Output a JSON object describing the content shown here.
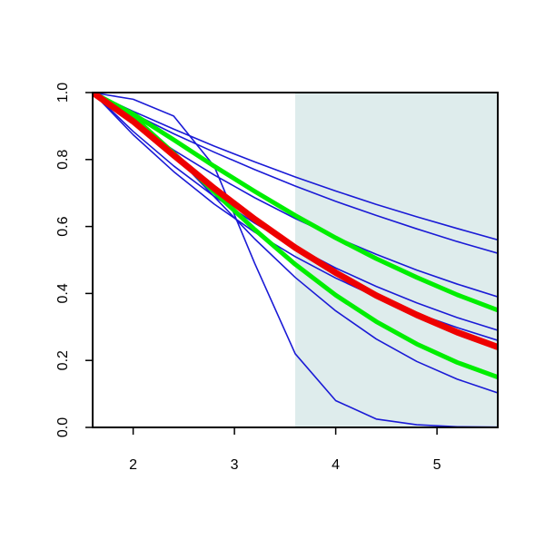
{
  "chart_data": {
    "type": "line",
    "x": [
      1.6,
      2.0,
      2.4,
      2.8,
      3.2,
      3.6,
      4.0,
      4.4,
      4.8,
      5.2,
      5.6
    ],
    "xlim": [
      1.6,
      5.6
    ],
    "ylim": [
      0,
      1
    ],
    "xticks": [
      2,
      3,
      4,
      5
    ],
    "yticks": [
      {
        "value": 0,
        "label": "0.0"
      },
      0.2,
      0.4,
      0.6,
      0.8,
      {
        "value": 1,
        "label": "1.0"
      }
    ],
    "highlight_xlim": [
      3.6,
      5.6
    ],
    "highlight_color": "#deecec",
    "series": [
      {
        "color": "#1a1ad6",
        "width": 1.6,
        "values": [
          1,
          0.944,
          0.891,
          0.84,
          0.793,
          0.748,
          0.706,
          0.666,
          0.629,
          0.594,
          0.56
        ]
      },
      {
        "color": "#1a1ad6",
        "width": 1.6,
        "values": [
          1,
          0.937,
          0.877,
          0.822,
          0.77,
          0.721,
          0.675,
          0.633,
          0.593,
          0.555,
          0.52
        ]
      },
      {
        "color": "#1a1ad6",
        "width": 1.6,
        "values": [
          1,
          0.91,
          0.828,
          0.754,
          0.686,
          0.624,
          0.568,
          0.517,
          0.47,
          0.428,
          0.39
        ]
      },
      {
        "color": "#1a1ad6",
        "width": 1.6,
        "values": [
          1,
          0.884,
          0.781,
          0.69,
          0.61,
          0.539,
          0.476,
          0.421,
          0.372,
          0.328,
          0.29
        ]
      },
      {
        "color": "#1a1ad6",
        "width": 1.6,
        "values": [
          1,
          0.874,
          0.764,
          0.667,
          0.583,
          0.51,
          0.446,
          0.39,
          0.34,
          0.298,
          0.26
        ]
      },
      {
        "color": "#1a1ad6",
        "width": 1.6,
        "values": [
          1,
          0.931,
          0.816,
          0.689,
          0.563,
          0.448,
          0.348,
          0.264,
          0.197,
          0.144,
          0.103
        ]
      },
      {
        "color": "#1a1ad6",
        "width": 1.6,
        "values": [
          1,
          0.98,
          0.93,
          0.78,
          0.49,
          0.22,
          0.08,
          0.025,
          0.008,
          0.002,
          0.001
        ]
      },
      {
        "color": "#00ee00",
        "width": 5,
        "values": [
          1,
          0.936,
          0.859,
          0.78,
          0.705,
          0.633,
          0.566,
          0.504,
          0.448,
          0.396,
          0.35
        ]
      },
      {
        "color": "#00ee00",
        "width": 5,
        "values": [
          1,
          0.928,
          0.819,
          0.703,
          0.591,
          0.487,
          0.395,
          0.316,
          0.249,
          0.194,
          0.15
        ]
      },
      {
        "color": "#ee0000",
        "width": 7,
        "values": [
          1,
          0.914,
          0.813,
          0.714,
          0.622,
          0.537,
          0.462,
          0.394,
          0.336,
          0.284,
          0.24
        ]
      }
    ]
  }
}
